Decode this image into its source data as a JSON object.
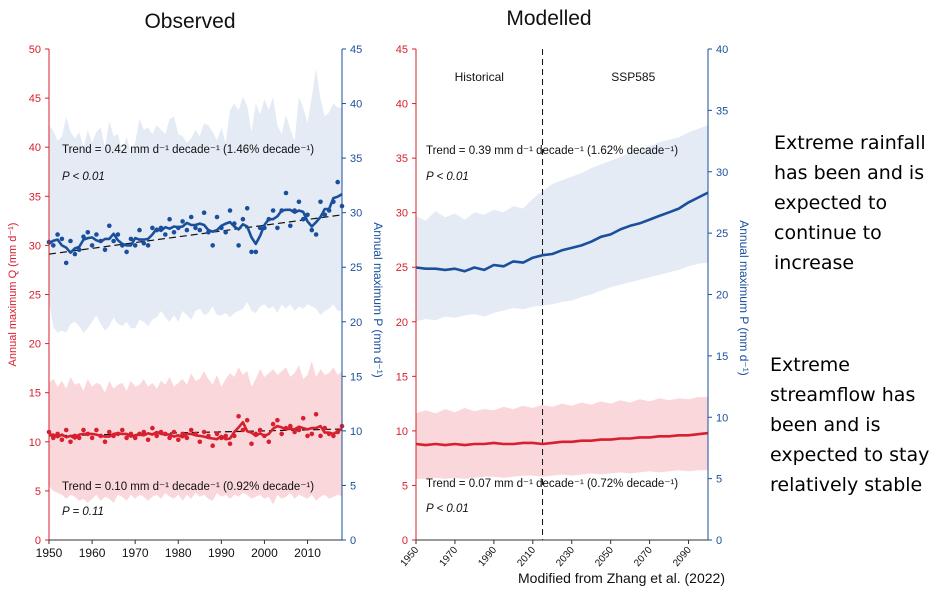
{
  "source_note": "Modified from Zhang et al. (2022)",
  "annotations": {
    "rainfall": "Extreme rainfall\nhas been and is\nexpected to\ncontinue to\nincrease",
    "streamflow": "Extreme\nstreamflow has\nbeen and is\nexpected to stay\nrelatively stable"
  },
  "colors": {
    "red": "#d7202f",
    "blue": "#1a4f9c",
    "red_band": "#f9d7da",
    "blue_band": "#e4ebf5",
    "rain_text": "#3d6fc8",
    "flow_text": "#ee1111"
  },
  "chart_data": [
    {
      "type": "line",
      "title": "Observed",
      "ylabel_left": "Annual maximum Q (mm d⁻¹)",
      "ylabel_right": "Annual maximum P (mm d⁻¹)",
      "ylim_left": [
        0,
        50
      ],
      "ylim_right": [
        0,
        45
      ],
      "xlim": [
        1950,
        2018
      ],
      "xticks": [
        "1950",
        "1960",
        "1970",
        "1980",
        "1990",
        "2000",
        "2010"
      ],
      "yticks_left": [
        "0",
        "5",
        "10",
        "15",
        "20",
        "25",
        "30",
        "35",
        "40",
        "45",
        "50"
      ],
      "yticks_right": [
        "0",
        "5",
        "10",
        "15",
        "20",
        "25",
        "30",
        "35",
        "40",
        "45"
      ],
      "annotations": [
        {
          "axis": "P",
          "trend": "Trend = 0.42 mm d⁻¹ decade⁻¹ (1.46% decade⁻¹)",
          "p": "P < 0.01"
        },
        {
          "axis": "Q",
          "trend": "Trend = 0.10 mm d⁻¹ decade⁻¹ (0.92% decade⁻¹)",
          "p": "P = 0.11"
        }
      ],
      "series": [
        {
          "axis": "P",
          "x": [
            1950,
            1951,
            1952,
            1953,
            1954,
            1955,
            1956,
            1957,
            1958,
            1959,
            1960,
            1961,
            1962,
            1963,
            1964,
            1965,
            1966,
            1967,
            1968,
            1969,
            1970,
            1971,
            1972,
            1973,
            1974,
            1975,
            1976,
            1977,
            1978,
            1979,
            1980,
            1981,
            1982,
            1983,
            1984,
            1985,
            1986,
            1987,
            1988,
            1989,
            1990,
            1991,
            1992,
            1993,
            1994,
            1995,
            1996,
            1997,
            1998,
            1999,
            2000,
            2001,
            2002,
            2003,
            2004,
            2005,
            2006,
            2007,
            2008,
            2009,
            2010,
            2011,
            2012,
            2013,
            2014,
            2015,
            2016,
            2017,
            2018
          ],
          "values": [
            27.3,
            27.0,
            28.0,
            27.6,
            25.4,
            27.4,
            26.2,
            26.6,
            27.8,
            28.2,
            27.0,
            28.0,
            27.4,
            26.6,
            28.8,
            27.4,
            28.0,
            27.0,
            26.4,
            27.6,
            27.0,
            28.4,
            27.2,
            27.0,
            28.6,
            28.4,
            28.6,
            28.0,
            29.4,
            28.2,
            28.6,
            29.2,
            28.4,
            29.6,
            28.6,
            28.4,
            30.0,
            28.2,
            27.0,
            29.6,
            28.6,
            28.2,
            30.2,
            29.0,
            27.0,
            29.4,
            30.4,
            26.4,
            26.4,
            28.6,
            28.6,
            29.4,
            30.2,
            28.6,
            30.2,
            31.8,
            28.8,
            30.2,
            31.0,
            29.4,
            29.8,
            28.4,
            28.0,
            31.0,
            29.8,
            30.2,
            31.0,
            32.8,
            30.6
          ],
          "band_lower": [
            22.0,
            19.5,
            19.0,
            19.2,
            19.0,
            19.8,
            20.0,
            19.6,
            19.0,
            19.4,
            20.0,
            20.6,
            19.8,
            19.2,
            19.6,
            20.4,
            19.8,
            19.6,
            20.0,
            19.4,
            19.4,
            20.2,
            20.0,
            19.6,
            20.2,
            20.4,
            21.0,
            20.4,
            20.0,
            20.6,
            20.0,
            21.0,
            20.6,
            20.2,
            21.0,
            21.2,
            20.6,
            20.8,
            21.4,
            20.6,
            20.6,
            20.8,
            20.4,
            20.8,
            21.0,
            21.2,
            21.8,
            21.0,
            20.8,
            21.4,
            21.6,
            21.2,
            21.4,
            20.8,
            21.6,
            21.2,
            21.6,
            21.0,
            21.4,
            21.2,
            21.6,
            21.4,
            21.2,
            20.6,
            21.0,
            21.2,
            21.6,
            21.0,
            21.0
          ],
          "band_upper": [
            38.0,
            37.5,
            36.6,
            37.0,
            38.8,
            37.4,
            36.8,
            37.4,
            36.0,
            37.6,
            36.4,
            37.4,
            37.8,
            36.0,
            38.4,
            37.0,
            37.2,
            35.6,
            37.0,
            35.4,
            36.4,
            38.6,
            37.6,
            37.8,
            37.2,
            38.0,
            37.6,
            37.2,
            38.6,
            38.8,
            37.2,
            37.0,
            36.4,
            36.8,
            37.6,
            37.0,
            38.2,
            38.0,
            37.4,
            36.6,
            37.8,
            36.4,
            39.4,
            40.0,
            39.4,
            40.6,
            39.8,
            37.4,
            40.0,
            39.0,
            40.4,
            39.4,
            40.6,
            38.0,
            37.2,
            39.0,
            37.6,
            36.6,
            40.6,
            39.6,
            38.2,
            40.6,
            43.2,
            40.4,
            38.8,
            39.2,
            40.0,
            39.6,
            39.6
          ]
        },
        {
          "axis": "Q",
          "x": [
            1950,
            1951,
            1952,
            1953,
            1954,
            1955,
            1956,
            1957,
            1958,
            1959,
            1960,
            1961,
            1962,
            1963,
            1964,
            1965,
            1966,
            1967,
            1968,
            1969,
            1970,
            1971,
            1972,
            1973,
            1974,
            1975,
            1976,
            1977,
            1978,
            1979,
            1980,
            1981,
            1982,
            1983,
            1984,
            1985,
            1986,
            1987,
            1988,
            1989,
            1990,
            1991,
            1992,
            1993,
            1994,
            1995,
            1996,
            1997,
            1998,
            1999,
            2000,
            2001,
            2002,
            2003,
            2004,
            2005,
            2006,
            2007,
            2008,
            2009,
            2010,
            2011,
            2012,
            2013,
            2014,
            2015,
            2016,
            2017,
            2018
          ],
          "values": [
            11.0,
            10.4,
            10.8,
            10.2,
            11.2,
            10.0,
            10.6,
            10.4,
            11.2,
            10.8,
            10.4,
            11.2,
            10.6,
            10.0,
            11.0,
            10.6,
            10.8,
            11.2,
            10.4,
            10.8,
            10.4,
            10.8,
            11.0,
            10.2,
            11.4,
            10.6,
            11.0,
            10.8,
            10.4,
            11.0,
            10.2,
            10.8,
            10.4,
            11.2,
            10.8,
            10.0,
            11.0,
            10.6,
            9.6,
            10.8,
            10.4,
            10.6,
            9.8,
            10.6,
            12.6,
            11.2,
            12.2,
            9.8,
            10.8,
            11.2,
            10.6,
            10.0,
            11.8,
            12.2,
            10.8,
            11.4,
            11.6,
            11.0,
            11.2,
            12.4,
            10.6,
            10.8,
            12.8,
            10.6,
            11.4,
            10.8,
            10.6,
            11.0,
            11.6
          ],
          "band_lower": [
            5.5,
            5.0,
            4.8,
            4.6,
            4.2,
            4.6,
            4.4,
            4.0,
            4.2,
            3.8,
            4.2,
            4.6,
            4.0,
            4.4,
            4.2,
            3.8,
            4.6,
            4.4,
            4.0,
            4.6,
            4.2,
            4.6,
            4.4,
            4.0,
            4.4,
            4.6,
            4.2,
            4.8,
            4.4,
            4.2,
            4.6,
            4.0,
            4.6,
            4.2,
            4.8,
            4.4,
            4.6,
            4.2,
            4.0,
            4.8,
            4.4,
            4.6,
            4.2,
            4.6,
            4.4,
            4.8,
            4.6,
            4.2,
            4.4,
            4.6,
            4.2,
            4.4,
            3.6,
            4.6,
            4.2,
            4.4,
            4.8,
            4.2,
            4.6,
            4.4,
            4.2,
            4.6,
            4.0,
            4.4,
            4.6,
            4.2,
            4.4,
            4.6,
            4.4
          ],
          "band_upper": [
            16.0,
            16.4,
            15.6,
            16.2,
            15.4,
            16.6,
            15.8,
            16.0,
            15.2,
            16.4,
            15.6,
            16.0,
            15.8,
            15.0,
            16.2,
            15.4,
            15.8,
            16.0,
            15.2,
            16.2,
            15.6,
            15.8,
            16.4,
            15.6,
            16.0,
            15.4,
            16.2,
            15.8,
            16.6,
            15.6,
            16.0,
            16.4,
            15.8,
            17.0,
            16.2,
            16.4,
            17.2,
            16.4,
            15.8,
            16.8,
            15.6,
            16.4,
            17.0,
            16.6,
            17.6,
            16.8,
            17.2,
            15.6,
            16.4,
            17.4,
            16.6,
            17.0,
            17.4,
            16.8,
            17.2,
            17.6,
            16.6,
            17.0,
            17.8,
            16.4,
            16.8,
            18.2,
            16.6,
            17.4,
            16.8,
            17.0,
            17.6,
            16.8,
            17.2
          ]
        }
      ],
      "trend_lines": [
        {
          "axis": "P",
          "x": [
            1950,
            2018
          ],
          "y": [
            26.2,
            29.8
          ]
        },
        {
          "axis": "Q",
          "x": [
            1950,
            2018
          ],
          "y": [
            10.6,
            11.3
          ]
        }
      ]
    },
    {
      "type": "line",
      "title": "Modelled",
      "ylabel_right": "Annual maximum P (mm d⁻¹)",
      "ylim_left": [
        0,
        45
      ],
      "ylim_right": [
        0,
        40
      ],
      "xlim": [
        1950,
        2100
      ],
      "xticks": [
        "1950",
        "1970",
        "1990",
        "2010",
        "2030",
        "2050",
        "2070",
        "2090"
      ],
      "yticks_left": [
        "0",
        "5",
        "10",
        "15",
        "20",
        "25",
        "30",
        "35",
        "40",
        "45"
      ],
      "yticks_right": [
        "0",
        "5",
        "10",
        "15",
        "20",
        "25",
        "30",
        "35",
        "40"
      ],
      "period_labels": [
        "Historical",
        "SSP585"
      ],
      "divider_x": 2015,
      "annotations": [
        {
          "axis": "P",
          "trend": "Trend = 0.39 mm d⁻¹ decade⁻¹ (1.62% decade⁻¹)",
          "p": "P < 0.01"
        },
        {
          "axis": "Q",
          "trend": "Trend = 0.07 mm d⁻¹ decade⁻¹  (0.72% decade⁻¹)",
          "p": "P < 0.01"
        }
      ],
      "series": [
        {
          "axis": "P",
          "x": [
            1950,
            1955,
            1960,
            1965,
            1970,
            1975,
            1980,
            1985,
            1990,
            1995,
            2000,
            2005,
            2010,
            2015,
            2020,
            2025,
            2030,
            2035,
            2040,
            2045,
            2050,
            2055,
            2060,
            2065,
            2070,
            2075,
            2080,
            2085,
            2090,
            2095,
            2100
          ],
          "values": [
            22.2,
            22.1,
            22.1,
            22.0,
            22.1,
            21.9,
            22.2,
            22.0,
            22.4,
            22.3,
            22.7,
            22.6,
            23.0,
            23.2,
            23.3,
            23.6,
            23.8,
            24.0,
            24.3,
            24.7,
            24.9,
            25.3,
            25.6,
            25.8,
            26.1,
            26.4,
            26.7,
            27.0,
            27.5,
            27.9,
            28.3
          ],
          "band_lower": [
            17.8,
            18.0,
            17.9,
            18.2,
            18.1,
            18.3,
            18.4,
            18.2,
            18.5,
            18.7,
            18.9,
            18.8,
            19.0,
            19.1,
            19.2,
            19.4,
            19.5,
            19.8,
            20.0,
            20.3,
            20.6,
            20.8,
            21.0,
            21.2,
            21.4,
            21.6,
            21.8,
            22.0,
            22.3,
            22.5,
            22.6
          ],
          "band_upper": [
            26.4,
            26.0,
            26.8,
            26.3,
            26.6,
            26.1,
            26.7,
            26.5,
            26.9,
            26.7,
            27.2,
            27.0,
            27.8,
            28.4,
            29.0,
            29.3,
            29.6,
            29.9,
            30.3,
            30.6,
            30.9,
            31.2,
            31.5,
            31.8,
            32.1,
            32.4,
            32.6,
            32.8,
            33.2,
            33.5,
            33.8
          ]
        },
        {
          "axis": "Q",
          "x": [
            1950,
            1955,
            1960,
            1965,
            1970,
            1975,
            1980,
            1985,
            1990,
            1995,
            2000,
            2005,
            2010,
            2015,
            2020,
            2025,
            2030,
            2035,
            2040,
            2045,
            2050,
            2055,
            2060,
            2065,
            2070,
            2075,
            2080,
            2085,
            2090,
            2095,
            2100
          ],
          "values": [
            8.8,
            8.7,
            8.8,
            8.7,
            8.8,
            8.7,
            8.8,
            8.8,
            8.9,
            8.8,
            8.8,
            8.9,
            8.9,
            8.8,
            8.9,
            9.0,
            9.0,
            9.1,
            9.1,
            9.2,
            9.2,
            9.3,
            9.3,
            9.4,
            9.4,
            9.5,
            9.5,
            9.6,
            9.6,
            9.7,
            9.8
          ],
          "band_lower": [
            5.6,
            5.6,
            5.7,
            5.6,
            5.7,
            5.6,
            5.7,
            5.8,
            5.8,
            5.7,
            5.8,
            5.9,
            5.9,
            5.8,
            5.9,
            6.0,
            5.9,
            6.0,
            6.1,
            6.0,
            6.1,
            6.2,
            6.1,
            6.2,
            6.3,
            6.2,
            6.3,
            6.4,
            6.3,
            6.4,
            6.4
          ],
          "band_upper": [
            11.6,
            11.9,
            11.6,
            12.0,
            11.7,
            12.1,
            11.8,
            12.0,
            11.9,
            12.2,
            12.0,
            12.3,
            12.1,
            12.4,
            12.2,
            12.5,
            12.3,
            12.6,
            12.4,
            12.7,
            12.5,
            12.8,
            12.6,
            12.9,
            12.7,
            13.0,
            12.8,
            13.0,
            12.9,
            13.1,
            13.1
          ]
        }
      ]
    }
  ]
}
